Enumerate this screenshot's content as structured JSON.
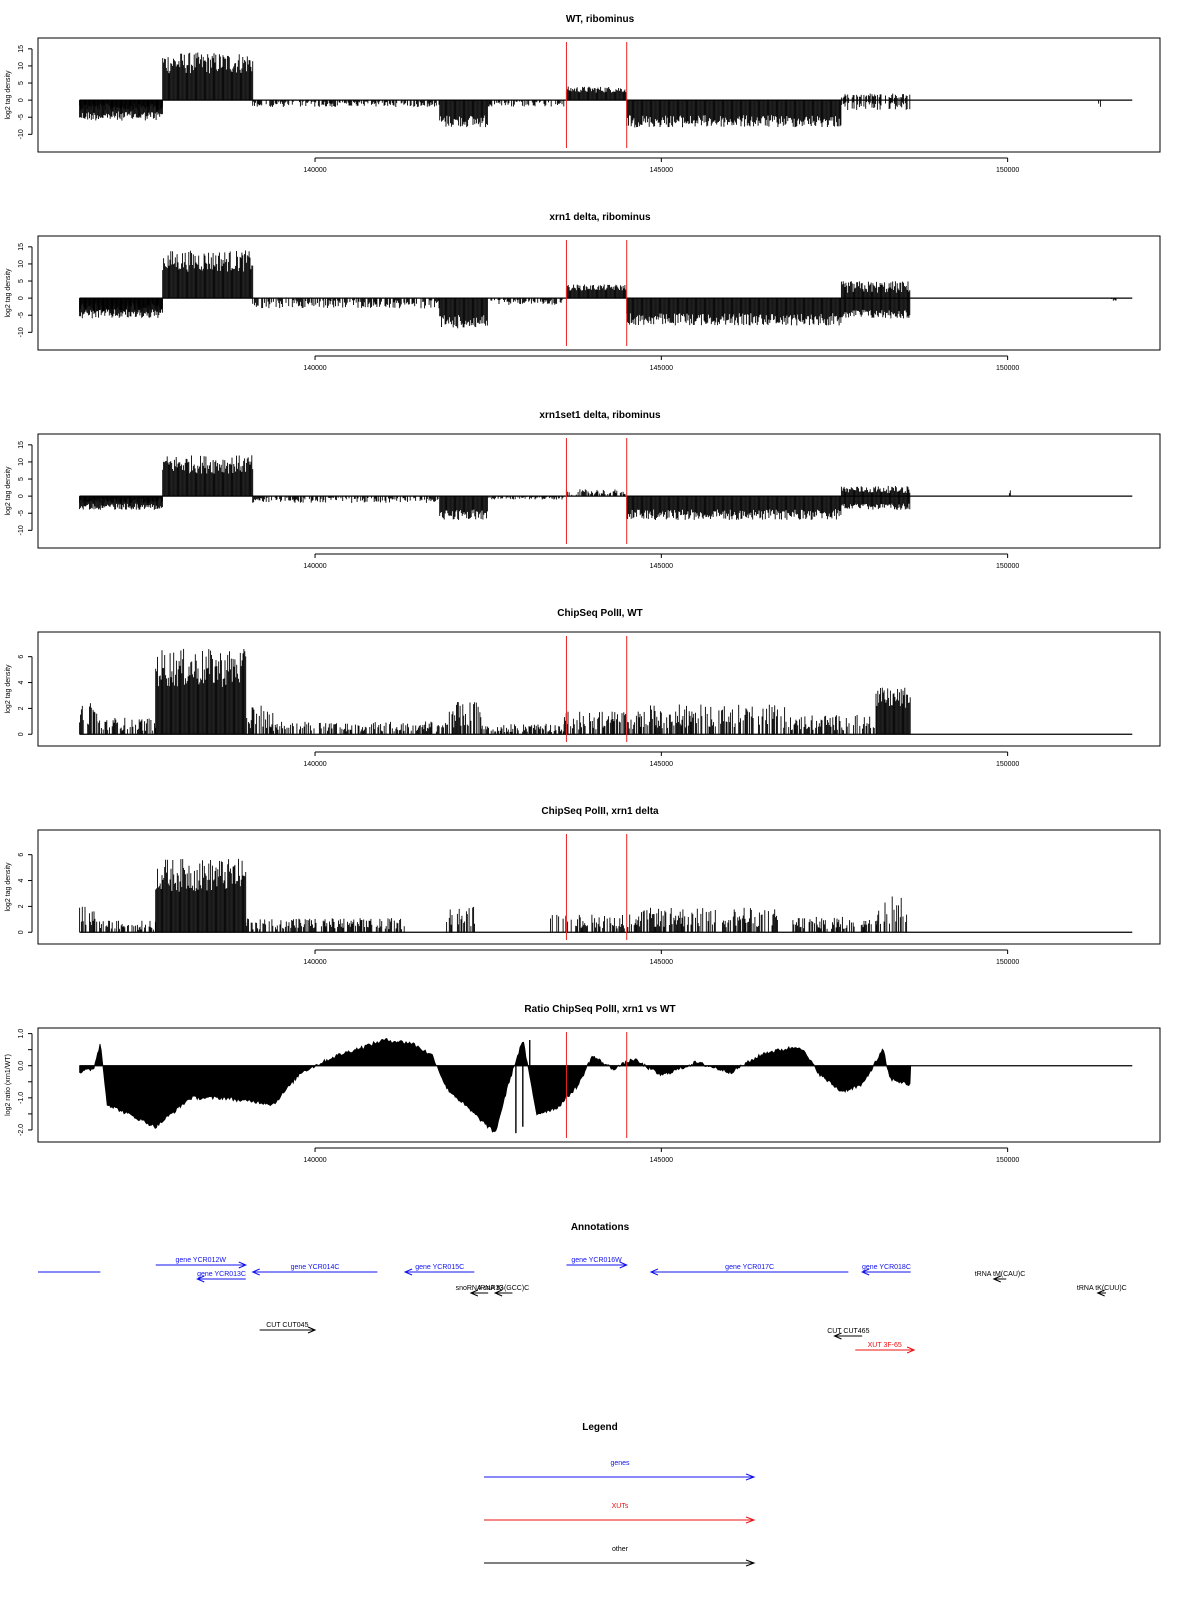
{
  "colors": {
    "gene": "#1010ee",
    "xut": "#ee1010",
    "other": "#000000",
    "marker": "#ee2222",
    "signal": "#000000"
  },
  "chart_data": [
    {
      "type": "area",
      "title": "WT, ribominus",
      "ylabel": "log2 tag density",
      "xlim": [
        136000,
        152200
      ],
      "ylim": [
        -14,
        17
      ],
      "yticks": [
        "15",
        "10",
        "5",
        "0",
        "-5",
        "-10"
      ],
      "ytick_values": [
        15,
        10,
        5,
        0,
        -5,
        -10
      ],
      "xticks": [
        "140000",
        "145000",
        "150000"
      ],
      "xtick_values": [
        140000,
        145000,
        150000
      ],
      "markers": [
        143630,
        144500
      ],
      "mode": "strand",
      "segments": [
        {
          "x": [
            136600,
            137800
          ],
          "y": [
            -3,
            -6
          ]
        },
        {
          "x": [
            137800,
            139100
          ],
          "y": [
            0,
            14
          ]
        },
        {
          "x": [
            139100,
            141800
          ],
          "y": [
            0,
            -2
          ]
        },
        {
          "x": [
            141800,
            142500
          ],
          "y": [
            0,
            -8
          ]
        },
        {
          "x": [
            142500,
            143600
          ],
          "y": [
            0,
            -2
          ]
        },
        {
          "x": [
            143630,
            144500
          ],
          "y": [
            0,
            4
          ]
        },
        {
          "x": [
            144500,
            147600
          ],
          "y": [
            0,
            -8
          ]
        },
        {
          "x": [
            147600,
            148600
          ],
          "y": [
            2,
            -3
          ]
        },
        {
          "x": [
            151300,
            151350
          ],
          "y": [
            0,
            -2
          ]
        }
      ]
    },
    {
      "type": "area",
      "title": "xrn1 delta, ribominus",
      "ylabel": "log2 tag density",
      "xlim": [
        136000,
        152200
      ],
      "ylim": [
        -14,
        17
      ],
      "yticks": [
        "15",
        "10",
        "5",
        "0",
        "-5",
        "-10"
      ],
      "ytick_values": [
        15,
        10,
        5,
        0,
        -5,
        -10
      ],
      "xticks": [
        "140000",
        "145000",
        "150000"
      ],
      "xtick_values": [
        140000,
        145000,
        150000
      ],
      "markers": [
        143630,
        144500
      ],
      "mode": "strand",
      "segments": [
        {
          "x": [
            136600,
            137800
          ],
          "y": [
            -4,
            -6
          ]
        },
        {
          "x": [
            137800,
            139100
          ],
          "y": [
            0,
            14
          ]
        },
        {
          "x": [
            139100,
            141800
          ],
          "y": [
            0,
            -3
          ]
        },
        {
          "x": [
            141800,
            142500
          ],
          "y": [
            0,
            -9
          ]
        },
        {
          "x": [
            142500,
            143600
          ],
          "y": [
            0,
            -2
          ]
        },
        {
          "x": [
            143630,
            144500
          ],
          "y": [
            0,
            4
          ]
        },
        {
          "x": [
            144500,
            147600
          ],
          "y": [
            0,
            -8
          ]
        },
        {
          "x": [
            147600,
            148600
          ],
          "y": [
            5,
            -6
          ]
        },
        {
          "x": [
            151500,
            151600
          ],
          "y": [
            0,
            -1
          ]
        }
      ]
    },
    {
      "type": "area",
      "title": "xrn1set1 delta, ribominus",
      "ylabel": "log2 tag density",
      "xlim": [
        136000,
        152200
      ],
      "ylim": [
        -14,
        17
      ],
      "yticks": [
        "15",
        "10",
        "5",
        "0",
        "-5",
        "-10"
      ],
      "ytick_values": [
        15,
        10,
        5,
        0,
        -5,
        -10
      ],
      "xticks": [
        "140000",
        "145000",
        "150000"
      ],
      "xtick_values": [
        140000,
        145000,
        150000
      ],
      "markers": [
        143630,
        144500
      ],
      "mode": "strand",
      "segments": [
        {
          "x": [
            136600,
            137800
          ],
          "y": [
            -2,
            -4
          ]
        },
        {
          "x": [
            137800,
            139100
          ],
          "y": [
            0,
            12
          ]
        },
        {
          "x": [
            139100,
            141800
          ],
          "y": [
            0,
            -2
          ]
        },
        {
          "x": [
            141800,
            142500
          ],
          "y": [
            0,
            -7
          ]
        },
        {
          "x": [
            142500,
            143600
          ],
          "y": [
            0,
            -1
          ]
        },
        {
          "x": [
            143630,
            144500
          ],
          "y": [
            0,
            2
          ]
        },
        {
          "x": [
            144500,
            147600
          ],
          "y": [
            0,
            -7
          ]
        },
        {
          "x": [
            147600,
            148600
          ],
          "y": [
            3,
            -4
          ]
        },
        {
          "x": [
            150000,
            150050
          ],
          "y": [
            0,
            2
          ]
        }
      ]
    },
    {
      "type": "area",
      "title": "ChipSeq PolII, WT",
      "ylabel": "log2 tag density",
      "xlim": [
        136000,
        152200
      ],
      "ylim": [
        -0.6,
        7.6
      ],
      "yticks": [
        "6",
        "4",
        "2",
        "0"
      ],
      "ytick_values": [
        6,
        4,
        2,
        0
      ],
      "xticks": [
        "140000",
        "145000",
        "150000"
      ],
      "xtick_values": [
        140000,
        145000,
        150000
      ],
      "markers": [
        143630,
        144500
      ],
      "mode": "positive",
      "segments": [
        {
          "x": [
            136600,
            136850
          ],
          "y": [
            0,
            2.5
          ]
        },
        {
          "x": [
            136850,
            137700
          ],
          "y": [
            0,
            1.3
          ]
        },
        {
          "x": [
            137700,
            139000
          ],
          "y": [
            0,
            6.6
          ]
        },
        {
          "x": [
            139000,
            139400
          ],
          "y": [
            0,
            2.3
          ]
        },
        {
          "x": [
            139400,
            141900
          ],
          "y": [
            0,
            1.0
          ]
        },
        {
          "x": [
            141900,
            142400
          ],
          "y": [
            0,
            2.6
          ]
        },
        {
          "x": [
            142400,
            143600
          ],
          "y": [
            0,
            0.8
          ]
        },
        {
          "x": [
            143600,
            144700
          ],
          "y": [
            0,
            1.8
          ]
        },
        {
          "x": [
            144700,
            146800
          ],
          "y": [
            0,
            2.3
          ]
        },
        {
          "x": [
            146800,
            148100
          ],
          "y": [
            0,
            1.5
          ]
        },
        {
          "x": [
            148100,
            148600
          ],
          "y": [
            0,
            3.6
          ]
        }
      ]
    },
    {
      "type": "area",
      "title": "ChipSeq PolII, xrn1 delta",
      "ylabel": "log2 tag density",
      "xlim": [
        136000,
        152200
      ],
      "ylim": [
        -0.6,
        7.6
      ],
      "yticks": [
        "6",
        "4",
        "2",
        "0"
      ],
      "ytick_values": [
        6,
        4,
        2,
        0
      ],
      "xticks": [
        "140000",
        "145000",
        "150000"
      ],
      "xtick_values": [
        140000,
        145000,
        150000
      ],
      "markers": [
        143630,
        144500
      ],
      "mode": "positive",
      "segments": [
        {
          "x": [
            136600,
            136850
          ],
          "y": [
            0,
            2.0
          ]
        },
        {
          "x": [
            136850,
            137700
          ],
          "y": [
            0,
            0.9
          ]
        },
        {
          "x": [
            137700,
            139000
          ],
          "y": [
            0,
            5.7
          ]
        },
        {
          "x": [
            139000,
            141300
          ],
          "y": [
            0,
            1.1
          ]
        },
        {
          "x": [
            141900,
            142400
          ],
          "y": [
            0,
            2.0
          ]
        },
        {
          "x": [
            143400,
            144700
          ],
          "y": [
            0,
            1.4
          ]
        },
        {
          "x": [
            144700,
            146700
          ],
          "y": [
            0,
            1.9
          ]
        },
        {
          "x": [
            146900,
            148100
          ],
          "y": [
            0,
            1.2
          ]
        },
        {
          "x": [
            148100,
            148600
          ],
          "y": [
            0,
            3.0
          ]
        }
      ]
    },
    {
      "type": "area",
      "title": "Ratio ChipSeq PolII, xrn1 vs WT",
      "ylabel": "log2 ratio (xrn1/WT)",
      "xlim": [
        136000,
        152200
      ],
      "ylim": [
        -2.25,
        1.05
      ],
      "yticks": [
        "1.0",
        "0.0",
        "-1.0",
        "-2.0"
      ],
      "ytick_values": [
        1.0,
        0.0,
        -1.0,
        -2.0
      ],
      "ytick_extra": [
        0.5,
        -0.5,
        -1.5
      ],
      "xticks": [
        "140000",
        "145000",
        "150000"
      ],
      "xtick_values": [
        140000,
        145000,
        150000
      ],
      "markers": [
        143630,
        144500
      ],
      "mode": "ratio",
      "x": [
        136600,
        136800,
        136900,
        137000,
        137300,
        137700,
        138200,
        138700,
        139000,
        139100,
        139400,
        139800,
        140300,
        141000,
        141400,
        141700,
        141900,
        142300,
        142600,
        142800,
        143000,
        143200,
        143500,
        143800,
        144000,
        144300,
        144600,
        145000,
        145500,
        146000,
        146500,
        147000,
        147300,
        147600,
        147900,
        148200,
        148300,
        148600
      ],
      "y": [
        -0.2,
        -0.1,
        0.7,
        -1.2,
        -1.5,
        -1.9,
        -1.0,
        -1.0,
        -1.1,
        -1.1,
        -1.2,
        -0.2,
        0.3,
        0.8,
        0.7,
        0.3,
        -0.7,
        -1.5,
        -2.1,
        -0.5,
        0.8,
        -1.5,
        -1.3,
        -0.6,
        0.3,
        -0.1,
        0.2,
        -0.3,
        0.1,
        -0.2,
        0.4,
        0.6,
        -0.3,
        -0.8,
        -0.6,
        0.5,
        -0.4,
        -0.6
      ]
    },
    {
      "type": "table",
      "title": "Annotations",
      "xlim": [
        136000,
        152200
      ],
      "features": [
        {
          "label": "",
          "kind": "gene",
          "from": 136000,
          "to": 136900,
          "dir": "none",
          "row": 2
        },
        {
          "label": "gene YCR012W",
          "kind": "gene",
          "from": 137700,
          "to": 139000,
          "dir": "right",
          "row": 1
        },
        {
          "label": "gene YCR013C",
          "kind": "gene",
          "from": 138300,
          "to": 139000,
          "dir": "left",
          "row": 3
        },
        {
          "label": "gene YCR014C",
          "kind": "gene",
          "from": 139100,
          "to": 140900,
          "dir": "left",
          "row": 2
        },
        {
          "label": "gene YCR015C",
          "kind": "gene",
          "from": 141300,
          "to": 142300,
          "dir": "left",
          "row": 2
        },
        {
          "label": "gene YCR016W",
          "kind": "gene",
          "from": 143630,
          "to": 144500,
          "dir": "right",
          "row": 1
        },
        {
          "label": "gene YCR017C",
          "kind": "gene",
          "from": 144850,
          "to": 147700,
          "dir": "left",
          "row": 2
        },
        {
          "label": "gene YCR018C",
          "kind": "gene",
          "from": 147900,
          "to": 148600,
          "dir": "left",
          "row": 2
        },
        {
          "label": "snoRNA snR33",
          "kind": "other",
          "from": 142250,
          "to": 142500,
          "dir": "left",
          "row": 4
        },
        {
          "label": "tRNA tG(GCC)C",
          "kind": "other",
          "from": 142600,
          "to": 142850,
          "dir": "left",
          "row": 4
        },
        {
          "label": "tRNA tM(CAU)C",
          "kind": "other",
          "from": 149800,
          "to": 149980,
          "dir": "left",
          "row": 3
        },
        {
          "label": "tRNA tK(CUU)C",
          "kind": "other",
          "from": 151300,
          "to": 151420,
          "dir": "left",
          "row": 4
        },
        {
          "label": "CUT CUT045",
          "kind": "other",
          "from": 139200,
          "to": 140000,
          "dir": "right",
          "row": 6
        },
        {
          "label": "CUT CUT465",
          "kind": "other",
          "from": 147500,
          "to": 147900,
          "dir": "left",
          "row": 7
        },
        {
          "label": "XUT 3F-65",
          "kind": "xut",
          "from": 147800,
          "to": 148650,
          "dir": "right",
          "row": 8
        }
      ]
    },
    {
      "type": "table",
      "title": "Legend",
      "entries": [
        {
          "label": "genes",
          "kind": "gene"
        },
        {
          "label": "XUTs",
          "kind": "xut"
        },
        {
          "label": "other",
          "kind": "other"
        }
      ]
    }
  ]
}
